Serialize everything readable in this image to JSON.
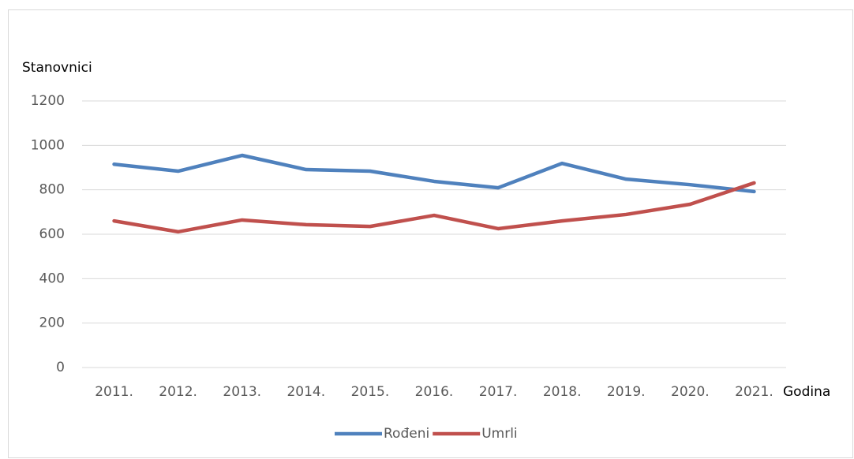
{
  "chart_data": {
    "type": "line",
    "y_label": "Stanovnici",
    "x_label": "Godina",
    "categories": [
      "2011.",
      "2012.",
      "2013.",
      "2014.",
      "2015.",
      "2016.",
      "2017.",
      "2018.",
      "2019.",
      "2020.",
      "2021."
    ],
    "series": [
      {
        "name": "Rođeni",
        "color": "#4f81bd",
        "values": [
          915,
          884,
          955,
          891,
          884,
          838,
          809,
          919,
          848,
          823,
          792
        ]
      },
      {
        "name": "Umrli",
        "color": "#c0504d",
        "values": [
          660,
          611,
          664,
          643,
          635,
          685,
          625,
          660,
          689,
          735,
          831
        ]
      }
    ],
    "ylim": [
      0,
      1200
    ],
    "yticks": [
      0,
      200,
      400,
      600,
      800,
      1000,
      1200
    ],
    "grid": true,
    "legend": "bottom"
  }
}
